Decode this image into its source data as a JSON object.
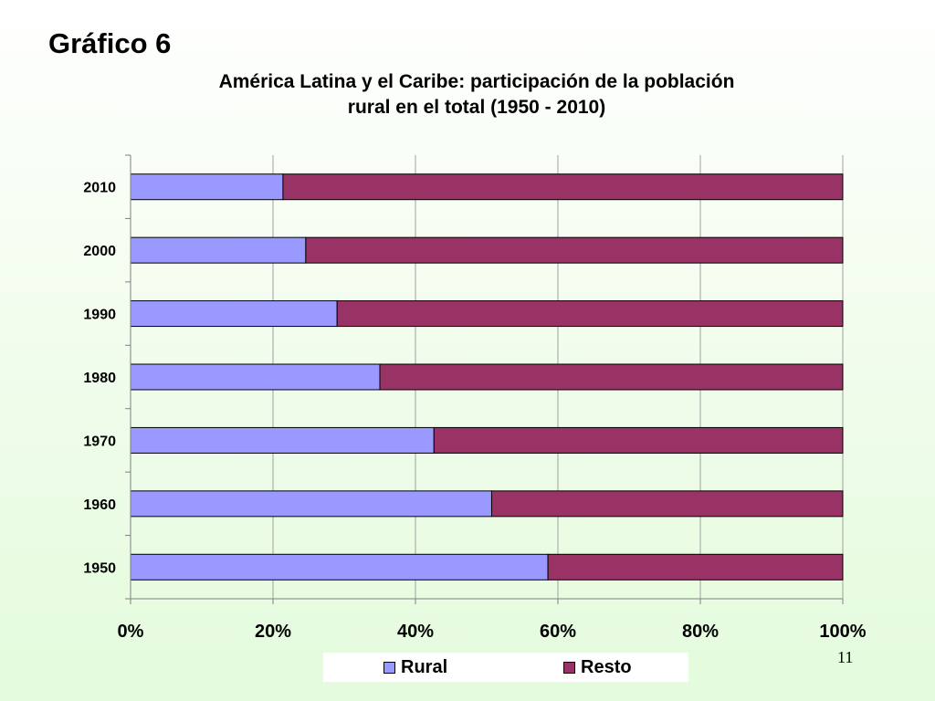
{
  "slide": {
    "heading": "Gráfico 6",
    "page_number": "11"
  },
  "chart_data": {
    "type": "bar",
    "orientation": "horizontal",
    "stacked": "percent",
    "title": "América Latina y el Caribe: participación de la población rural en el total (1950 - 2010)",
    "title_lines": [
      "América Latina y el Caribe: participación de la población",
      "rural en el total (1950 - 2010)"
    ],
    "categories": [
      "1950",
      "1960",
      "1970",
      "1980",
      "1990",
      "2000",
      "2010"
    ],
    "series": [
      {
        "name": "Rural",
        "color": "#9999ff",
        "values": [
          58.6,
          50.7,
          42.6,
          35.0,
          29.0,
          24.6,
          21.4
        ]
      },
      {
        "name": "Resto",
        "color": "#993366",
        "values": [
          41.4,
          49.3,
          57.4,
          65.0,
          71.0,
          75.4,
          78.6
        ]
      }
    ],
    "xlim": [
      0,
      100
    ],
    "x_ticks": [
      0,
      20,
      40,
      60,
      80,
      100
    ],
    "x_tick_labels": [
      "0%",
      "20%",
      "40%",
      "60%",
      "80%",
      "100%"
    ],
    "xlabel": "",
    "ylabel": "",
    "grid": "vertical",
    "legend_position": "bottom"
  }
}
